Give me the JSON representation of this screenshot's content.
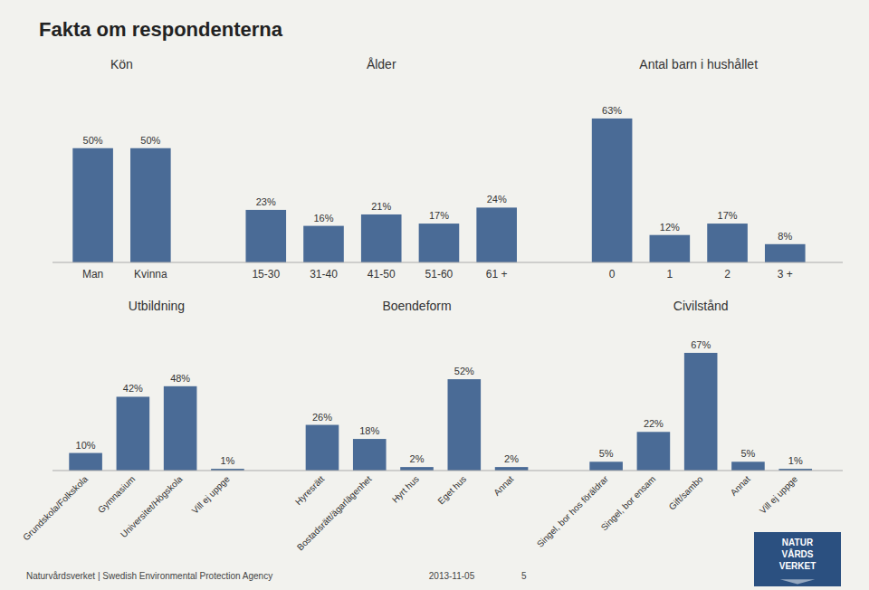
{
  "chart_data": [
    {
      "type": "bar",
      "title": "Fakta om respondenterna",
      "categories": [
        "Man",
        "Kvinna",
        null,
        "15-30",
        "31-40",
        "41-50",
        "51-60",
        "61 +",
        null,
        "0",
        "1",
        "2",
        "3 +"
      ],
      "values": [
        50,
        50,
        null,
        23,
        16,
        21,
        17,
        24,
        null,
        63,
        12,
        17,
        8
      ],
      "value_labels": [
        "50%",
        "50%",
        null,
        "23%",
        "16%",
        "21%",
        "17%",
        "24%",
        null,
        "63%",
        "12%",
        "17%",
        "8%"
      ],
      "color": "#4a6b96",
      "ylim": [
        0,
        80
      ],
      "data_labels": true,
      "tick_labels": "x",
      "grid": false,
      "annotations": [
        "Kön",
        "Ålder",
        "Antal barn i hushållet"
      ]
    },
    {
      "type": "bar",
      "categories": [
        "Grundskola/Folkskola",
        "Gymnasium",
        "Universitet/Högskola",
        "Vill ej uppge",
        null,
        "Hyresrätt",
        "Bostadsrätt/ägarlägenhet",
        "Hyrt hus",
        "Eget hus",
        "Annat",
        null,
        "Singel, bor hos föräldrar",
        "Singel, bor ensam",
        "Gift/sambo",
        "Annat",
        "Vill ej uppge"
      ],
      "values": [
        10,
        42,
        48,
        1,
        null,
        26,
        18,
        2,
        52,
        2,
        null,
        5,
        22,
        67,
        5,
        1
      ],
      "value_labels": [
        "10%",
        "42%",
        "48%",
        "1%",
        null,
        "26%",
        "18%",
        "2%",
        "52%",
        "2%",
        null,
        "5%",
        "22%",
        "67%",
        "5%",
        "1%"
      ],
      "color": "#4a6b96",
      "ylim": [
        0,
        85
      ],
      "data_labels": true,
      "tick_labels": "x",
      "grid": false,
      "annotations": [
        "Utbildning",
        "Boendeform",
        "Civilstånd"
      ]
    }
  ],
  "footer": [
    "Naturvårdsverket | Swedish Environmental Protection Agency",
    "2013-11-05",
    "5"
  ],
  "logo": [
    "NATUR",
    "VÅRDS",
    "VERKET"
  ]
}
